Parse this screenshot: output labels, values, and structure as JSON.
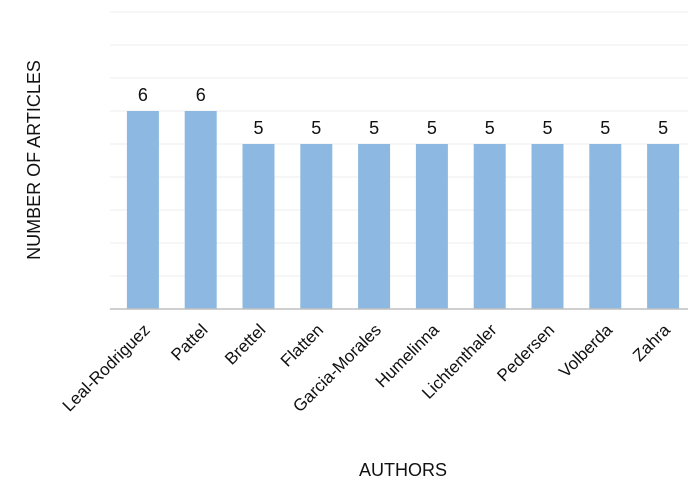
{
  "chart_data": {
    "type": "bar",
    "title": "",
    "xlabel": "AUTHORS",
    "ylabel": "NUMBER OF ARTICLES",
    "categories": [
      "Leal-Rodriguez",
      "Pattel",
      "Brettel",
      "Flatten",
      "Garcia-Morales",
      "Humelinna",
      "Lichtenthaler",
      "Pedersen",
      "Volberda",
      "Zahra"
    ],
    "values": [
      6,
      6,
      5,
      5,
      5,
      5,
      5,
      5,
      5,
      5
    ],
    "ylim": [
      0,
      9
    ],
    "grid": true,
    "legend": "none",
    "bar_color": "#8db8e2",
    "grid_color": "#ececec",
    "axis_color": "#bfbfbf"
  }
}
